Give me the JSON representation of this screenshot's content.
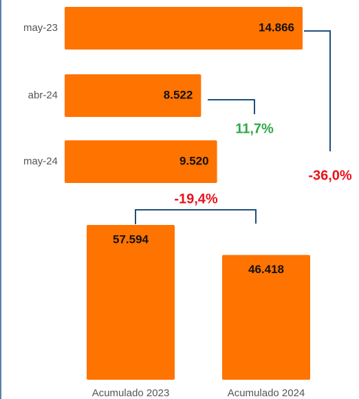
{
  "chart_data": [
    {
      "type": "bar",
      "orientation": "horizontal",
      "categories": [
        "may-23",
        "abr-24",
        "may-24"
      ],
      "values": [
        14866,
        8522,
        9520
      ],
      "value_labels": [
        "14.866",
        "8.522",
        "9.520"
      ],
      "color": "#ff7300",
      "annotations": [
        {
          "text": "11,7%",
          "color": "#2ea84a"
        },
        {
          "text": "-36,0%",
          "color": "#e8121b"
        }
      ]
    },
    {
      "type": "bar",
      "orientation": "vertical",
      "categories": [
        "Acumulado 2023",
        "Acumulado 2024"
      ],
      "values": [
        57594,
        46418
      ],
      "value_labels": [
        "57.594",
        "46.418"
      ],
      "color": "#ff7300",
      "annotations": [
        {
          "text": "-19,4%",
          "color": "#e8121b"
        }
      ]
    }
  ]
}
